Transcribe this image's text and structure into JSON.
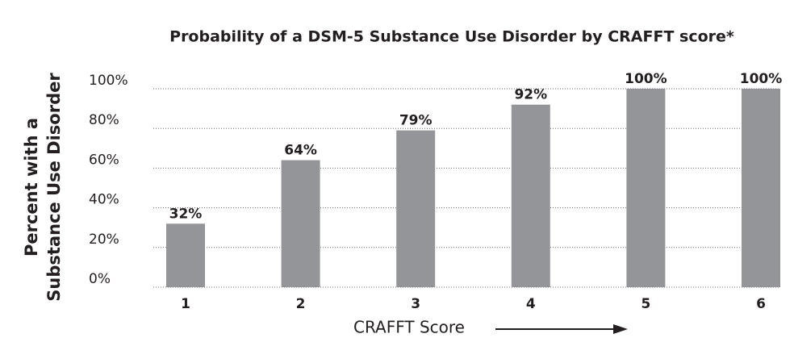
{
  "chart_data": {
    "type": "bar",
    "title": "Probability of a DSM-5 Substance Use Disorder by CRAFFT score*",
    "x_label": "CRAFFT Score",
    "y_label": [
      "Percent with a",
      "Substance Use Disorder"
    ],
    "categories": [
      "1",
      "2",
      "3",
      "4",
      "5",
      "6"
    ],
    "values": [
      32,
      64,
      79,
      92,
      100,
      100
    ],
    "value_labels": [
      "32%",
      "64%",
      "79%",
      "92%",
      "100%",
      "100%"
    ],
    "color": "#939598",
    "ylim": [
      0,
      100
    ],
    "yticks": [
      {
        "value": 0,
        "label": "0%"
      },
      {
        "value": 20,
        "label": "20%"
      },
      {
        "value": 40,
        "label": "40%"
      },
      {
        "value": 60,
        "label": "60%"
      },
      {
        "value": 80,
        "label": "80%"
      },
      {
        "value": 100,
        "label": "100%"
      }
    ],
    "grid": true
  }
}
